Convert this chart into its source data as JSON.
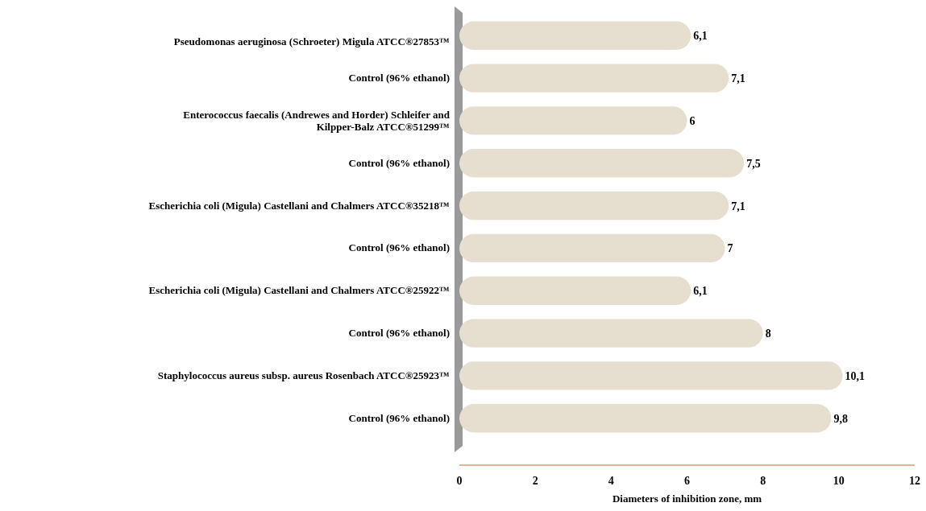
{
  "chart_data": {
    "type": "bar",
    "orientation": "horizontal",
    "categories": [
      "Pseudomonas aeruginosa (Schroeter) Migula ATCC®27853™",
      "Control (96% ethanol)",
      "Enterococcus faecalis (Andrewes and Horder) Schleifer and Kilpper-Balz ATCC®51299™",
      "Control (96% ethanol)",
      "Escherichia coli (Migula) Castellani and Chalmers ATCC®35218™",
      "Control (96% ethanol)",
      "Escherichia coli (Migula) Castellani and Chalmers ATCC®25922™",
      "Control (96% ethanol)",
      "Staphylococcus aureus subsp. aureus Rosenbach ATCC®25923™",
      "Control (96% ethanol)"
    ],
    "values": [
      6.1,
      7.1,
      6,
      7.5,
      7.1,
      7,
      6.1,
      8,
      10.1,
      9.8
    ],
    "value_labels": [
      "6,1",
      "7,1",
      "6",
      "7,5",
      "7,1",
      "7",
      "6,1",
      "8",
      "10,1",
      "9,8"
    ],
    "color": "#e6dfcf",
    "xlim": [
      0,
      12
    ],
    "xticks": [
      0,
      2,
      4,
      6,
      8,
      10,
      12
    ],
    "xlabel": "Diameters of inhibition zone, mm",
    "grid": false
  }
}
